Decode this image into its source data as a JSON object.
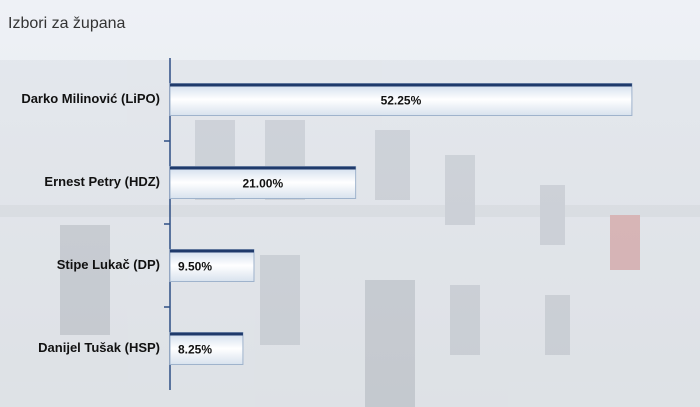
{
  "chart_data": {
    "type": "bar",
    "orientation": "horizontal",
    "title": "Izbori za župana",
    "categories": [
      "Darko Milinović (LiPO)",
      "Ernest Petry (HDZ)",
      "Stipe Lukač (DP)",
      "Danijel Tušak (HSP)"
    ],
    "values": [
      52.25,
      21.0,
      9.5,
      8.25
    ],
    "value_labels": [
      "52.25%",
      "21.00%",
      "9.50%",
      "8.25%"
    ],
    "color": "#1f3a6b"
  }
}
